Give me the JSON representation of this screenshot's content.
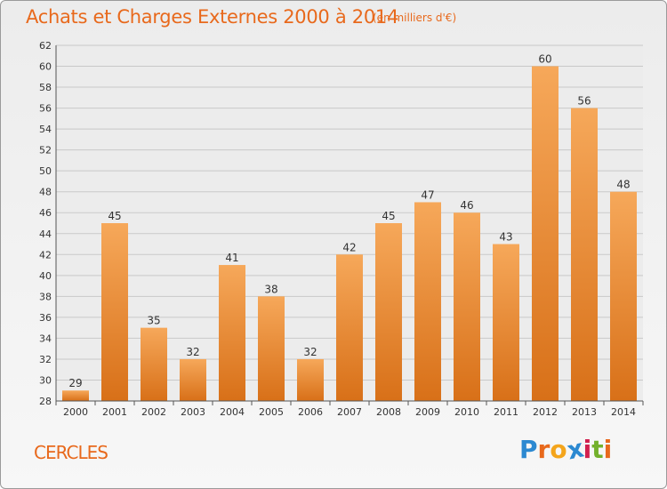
{
  "header": {
    "title": "Achats et Charges Externes 2000 à 2014",
    "subtitle": "(en milliers d'€)"
  },
  "footer": {
    "commune": "CERCLES",
    "logo_text": "Proxiti",
    "logo_letters": [
      "P",
      "r",
      "o",
      "x",
      "i",
      "t",
      "i"
    ],
    "logo_colors": [
      "#2c89d1",
      "#e8691c",
      "#f4a51c",
      "#2c89d1",
      "#d1214f",
      "#73b12c",
      "#e8691c"
    ]
  },
  "colors": {
    "accent": "#e8691c",
    "bar_top": "#f6a85a",
    "bar_bottom": "#d87018"
  },
  "chart_data": {
    "type": "bar",
    "title": "Achats et Charges Externes 2000 à 2014",
    "subtitle": "(en milliers d'€)",
    "xlabel": "",
    "ylabel": "",
    "categories": [
      "2000",
      "2001",
      "2002",
      "2003",
      "2004",
      "2005",
      "2006",
      "2007",
      "2008",
      "2009",
      "2010",
      "2011",
      "2012",
      "2013",
      "2014"
    ],
    "values": [
      29,
      45,
      35,
      32,
      41,
      38,
      32,
      42,
      45,
      47,
      46,
      43,
      60,
      56,
      48
    ],
    "ylim": [
      28,
      62
    ],
    "yticks": [
      28,
      30,
      32,
      34,
      36,
      38,
      40,
      42,
      44,
      46,
      48,
      50,
      52,
      54,
      56,
      58,
      60,
      62
    ],
    "grid": true,
    "data_labels": true
  }
}
